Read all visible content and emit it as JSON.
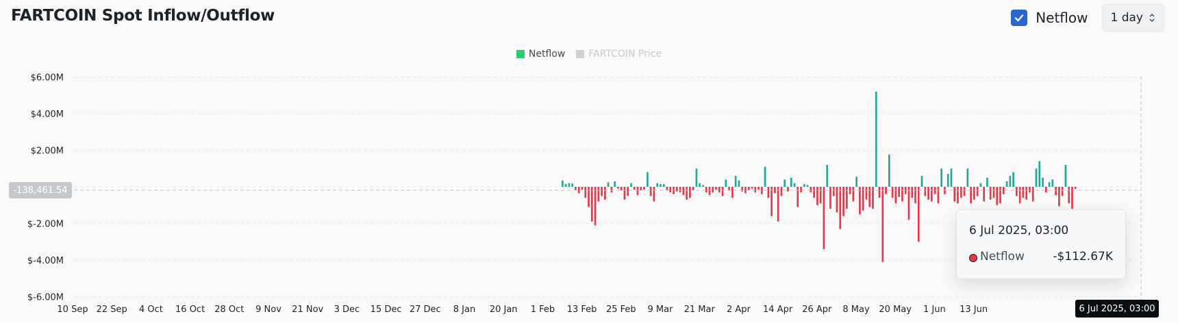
{
  "header": {
    "title": "FARTCOIN Spot Inflow/Outflow",
    "checkbox_label": "Netflow",
    "checkbox_checked": true,
    "interval_value": "1 day"
  },
  "legend": [
    {
      "label": "Netflow",
      "color": "#2ecc71",
      "active": true
    },
    {
      "label": "FARTCOIN Price",
      "color": "#d0d0d0",
      "active": false
    }
  ],
  "colors": {
    "positive": "#26a69a",
    "negative": "#e5394a"
  },
  "crosshair": {
    "y_label": "-138,461.54",
    "x_label": "6 Jul 2025, 03:00"
  },
  "tooltip": {
    "date": "6 Jul 2025, 03:00",
    "series_name": "Netflow",
    "series_value": "-$112.67K"
  },
  "chart_data": {
    "type": "bar",
    "series": [
      {
        "name": "Netflow"
      }
    ],
    "yaxis_ticks": [
      "$6.00M",
      "$4.00M",
      "$2.00M",
      "$-2.00M",
      "$-4.00M",
      "$-6.00M"
    ],
    "yaxis_tick_values": [
      6,
      4,
      2,
      -2,
      -4,
      -6
    ],
    "ylim": [
      -6,
      6
    ],
    "y_unit": "millions USD",
    "xaxis_ticks": [
      "10 Sep",
      "22 Sep",
      "4 Oct",
      "16 Oct",
      "28 Oct",
      "9 Nov",
      "21 Nov",
      "3 Dec",
      "15 Dec",
      "27 Dec",
      "8 Jan",
      "20 Jan",
      "1 Feb",
      "13 Feb",
      "25 Feb",
      "9 Mar",
      "21 Mar",
      "2 Apr",
      "14 Apr",
      "26 Apr",
      "8 May",
      "20 May",
      "1 Jun",
      "13 Jun"
    ],
    "x_start": "24 Jan",
    "values": [
      0.35,
      0.15,
      0.2,
      0.18,
      -0.2,
      -0.35,
      -0.15,
      -0.6,
      -1.1,
      -1.9,
      -2.1,
      -0.8,
      -0.5,
      -0.7,
      0.25,
      -0.3,
      0.3,
      -0.1,
      -0.2,
      -0.7,
      -0.5,
      0.2,
      -0.15,
      -0.45,
      -0.2,
      -0.15,
      0.8,
      -0.5,
      -0.8,
      0.2,
      0.15,
      0.15,
      -0.2,
      -0.3,
      -0.4,
      -0.25,
      -0.3,
      -0.45,
      -0.7,
      -0.6,
      -0.2,
      1.0,
      0.2,
      0.1,
      -0.3,
      -0.45,
      -0.3,
      -0.15,
      -0.3,
      -0.5,
      0.4,
      -0.2,
      -0.6,
      0.6,
      0.35,
      -0.25,
      -0.35,
      -0.2,
      -0.1,
      -0.3,
      -0.15,
      -0.4,
      1.1,
      -0.6,
      -1.6,
      -0.35,
      -1.9,
      -0.5,
      0.4,
      -0.25,
      0.5,
      0.2,
      -1.1,
      -0.3,
      0.15,
      0.1,
      -0.3,
      -0.6,
      -1.0,
      -0.9,
      -3.4,
      1.2,
      -1.2,
      -0.5,
      -1.4,
      -2.3,
      -1.6,
      -1.2,
      -0.4,
      -0.8,
      0.55,
      -1.5,
      -1.3,
      -0.7,
      -1.1,
      -1.2,
      5.2,
      -0.6,
      -4.1,
      -0.4,
      1.75,
      -0.6,
      -0.9,
      -0.55,
      -0.8,
      -0.4,
      -1.8,
      -0.6,
      -0.9,
      -3.0,
      0.6,
      -0.5,
      -0.7,
      -0.8,
      -0.4,
      -0.9,
      1.0,
      -0.4,
      0.7,
      1.0,
      -0.8,
      -0.9,
      -0.6,
      -0.5,
      1.0,
      -0.9,
      -0.7,
      -0.5,
      0.2,
      -0.8,
      0.5,
      -0.7,
      -0.6,
      -1.0,
      -0.9,
      -0.4,
      0.3,
      0.6,
      0.8,
      -0.5,
      -0.9,
      -0.6,
      -0.7,
      -0.3,
      -0.8,
      1.0,
      1.4,
      0.5,
      -0.3,
      0.25,
      0.4,
      -0.45,
      -1.05,
      -0.5,
      1.2,
      -0.9,
      -1.2,
      -0.11
    ]
  }
}
